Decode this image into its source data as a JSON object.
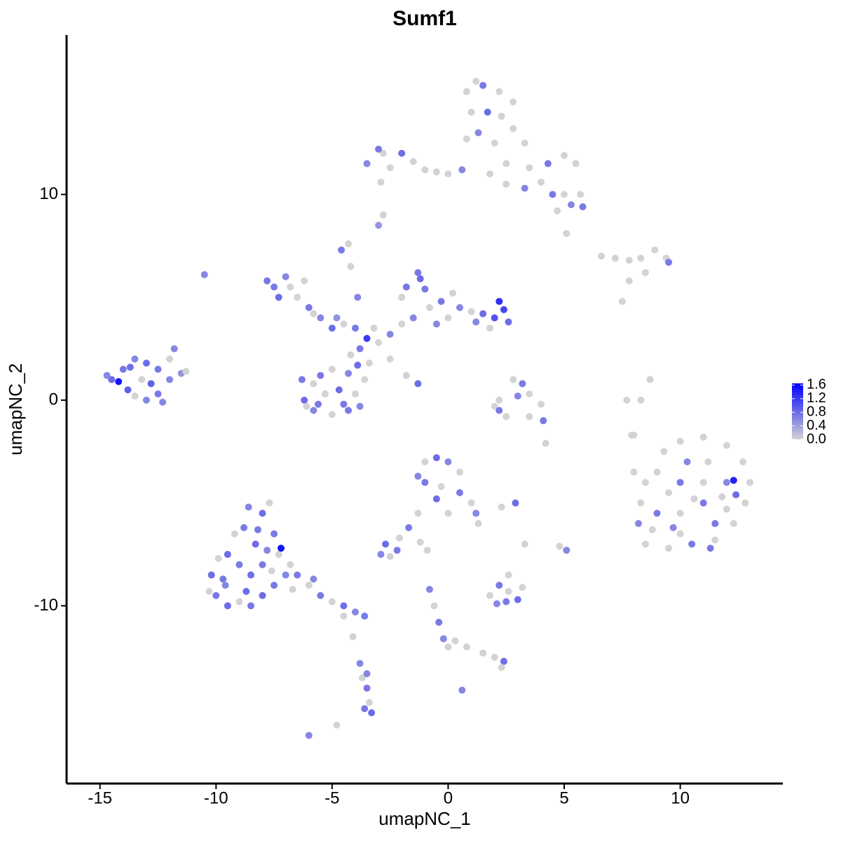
{
  "chart_data": {
    "type": "scatter",
    "title": "Sumf1",
    "x_label": "umapNC_1",
    "y_label": "umapNC_2",
    "xlim": [
      -16.44,
      14.42
    ],
    "ylim": [
      -18.64,
      17.75
    ],
    "xticks": [
      -15,
      -10,
      -5,
      0,
      5,
      10
    ],
    "yticks": [
      -10,
      0,
      10
    ],
    "grid": false,
    "color_scale": {
      "colors": [
        "#d3d3d3",
        "#0000ff"
      ],
      "lim": [
        0,
        1.65
      ],
      "ticks": [
        {
          "value": 0,
          "label": "0.0"
        },
        0.4,
        0.8,
        1.2,
        1.6
      ]
    },
    "x": [
      -14.5,
      -14,
      -13.5,
      -13,
      -12.5,
      -12,
      -11.5,
      -11.8,
      -12.5,
      -13,
      -13.8,
      -14.2,
      -13.2,
      -12.8,
      -12.3,
      -14.7,
      -11.3,
      -13.5,
      -12,
      -13.7,
      -7.5,
      -7,
      -7.3,
      -6.5,
      -6,
      -5.5,
      -5,
      -4.5,
      -4,
      -6.8,
      -5.8,
      -4.8,
      -7.8,
      -6.2,
      -10.5,
      -4.6,
      -4.3,
      -4.2,
      -3.9,
      -3.5,
      -3,
      -3.8,
      -3.2,
      -2.5,
      -2,
      -3.4,
      -4.2,
      -1.2,
      -1,
      -0.8,
      -0.3,
      0,
      0.5,
      1,
      1.5,
      2,
      2.4,
      2.6,
      1.8,
      -1.5,
      -2,
      -1.8,
      1.2,
      2.2,
      0.2,
      -0.5,
      -1.3,
      -2.5,
      -1.8,
      -1.3,
      -6.3,
      -6.2,
      -5.8,
      -5,
      -4.3,
      -4,
      -4.3,
      -5,
      -5.5,
      -5.3,
      -4.7,
      -5.8,
      -3.8,
      -3.6,
      -5.6,
      -6.1,
      -4.5,
      -3.9,
      0.8,
      1.5,
      2.2,
      2.8,
      1,
      1.7,
      2.3,
      1.3,
      2,
      2.8,
      1.2,
      0.8,
      -3.5,
      -2.8,
      -2.5,
      -2,
      -1.5,
      -1,
      -0.5,
      0,
      0.6,
      -2.9,
      -3,
      1.8,
      2.5,
      3.5,
      4.3,
      5,
      5.5,
      3.3,
      4,
      4.5,
      5,
      5.7,
      5.3,
      4.7,
      5.8,
      2.5,
      3.3,
      5.1,
      -2.8,
      -3,
      6.6,
      7.2,
      7.8,
      8.3,
      8.9,
      9.4,
      9.5,
      8.5,
      7.8,
      7.5,
      8.7,
      8.3,
      7.7,
      8,
      2.8,
      3.2,
      3,
      3.5,
      4,
      3.5,
      2.5,
      2,
      2.2,
      4.1,
      2.2,
      4.2,
      -1,
      -0.5,
      0,
      0.5,
      -1,
      -0.3,
      0.5,
      1,
      1.2,
      -0.5,
      0,
      1.3,
      -1.3,
      2.9,
      2.3,
      -1.3,
      -1.7,
      -2.1,
      -2.7,
      -2.2,
      -2.5,
      -2.9,
      -1.2,
      -0.9,
      1.8,
      2.2,
      2.6,
      3,
      2.5,
      2.1,
      3.2,
      2.6,
      3.3,
      5.1,
      4.8,
      -0.8,
      -0.6,
      -0.4,
      -0.2,
      0,
      0.3,
      0.8,
      1.5,
      2,
      2.4,
      2.3,
      0.6,
      -10.2,
      -10,
      -9.5,
      -9,
      -8.5,
      -8,
      -7.5,
      -7,
      -7.3,
      -7.5,
      -8,
      -8.6,
      -9.2,
      -9.5,
      -9,
      -8.5,
      -8,
      -8.3,
      -8.8,
      -7.8,
      -7.2,
      -9.7,
      -8.7,
      -7.6,
      -10.3,
      -9.9,
      -7.7,
      -6.8,
      -9.6,
      -8.2,
      -6.5,
      -6,
      -5.5,
      -5,
      -4.5,
      -4,
      -3.6,
      -4.5,
      -5.8,
      -6.7,
      -4.1,
      -3.8,
      -3.7,
      -3.5,
      -3.4,
      -3.6,
      -3.3,
      -6,
      -4.8,
      -3.5,
      8.5,
      8.3,
      8.2,
      8.5,
      9.5,
      10.5,
      11.5,
      12.3,
      12.8,
      13,
      12.7,
      12,
      11,
      10,
      9.3,
      9,
      10,
      11,
      12,
      11,
      10,
      9,
      10,
      11.5,
      12,
      11.2,
      10.3,
      9.5,
      12.3,
      8.8,
      10.6,
      11.8,
      9.7,
      11.3,
      12.4,
      8,
      7.9
    ],
    "values": [
      1,
      1.5,
      2,
      1.8,
      1.5,
      1,
      1.3,
      2.5,
      0.3,
      0,
      0.5,
      0.9,
      1,
      0.8,
      -0.1,
      1.2,
      1.4,
      0.2,
      2,
      1.6,
      5.5,
      6,
      5,
      5,
      4.5,
      4,
      3.5,
      3.7,
      3.5,
      5.5,
      4.2,
      4,
      5.8,
      5.8,
      6.1,
      7.3,
      7.6,
      6.5,
      5,
      3,
      2.8,
      2.5,
      3.5,
      3.2,
      3.7,
      1.8,
      2.2,
      5.9,
      5.4,
      4.5,
      4.8,
      4,
      4.5,
      4.3,
      4.2,
      4,
      4.4,
      3.8,
      3.5,
      4,
      5,
      5.5,
      3.8,
      4.8,
      5.2,
      3.7,
      6.2,
      2,
      1.2,
      0.8,
      1,
      0,
      -0.5,
      -0.7,
      -0.5,
      0.3,
      1.3,
      1.5,
      1.2,
      0.3,
      0.5,
      0.8,
      -0.3,
      1,
      -0.2,
      -0.3,
      -0.2,
      1.7,
      15,
      15.3,
      15,
      14.5,
      14,
      14,
      13.8,
      13,
      12.5,
      13.2,
      15.5,
      12.7,
      11.5,
      12,
      11.3,
      12,
      11.6,
      11.2,
      11.1,
      11,
      11.2,
      10.6,
      12.2,
      11,
      11.5,
      11.3,
      11.5,
      11.9,
      11.5,
      12.5,
      10.6,
      10,
      10,
      10,
      9.5,
      9.2,
      9.4,
      10.5,
      10.3,
      8.1,
      9,
      8.5,
      7,
      6.9,
      6.8,
      6.9,
      7.3,
      6.9,
      6.7,
      6.2,
      5.8,
      4.8,
      1,
      0,
      0,
      -1.7,
      1,
      0.8,
      0.2,
      0.3,
      -0.2,
      -0.8,
      -0.8,
      -0.3,
      -0.5,
      -1,
      0,
      -2.1,
      -3,
      -2.8,
      -3,
      -3.5,
      -4,
      -4.2,
      -4.5,
      -5,
      -5.5,
      -4.8,
      -5.5,
      -6,
      -3.7,
      -5,
      -5.2,
      -5.5,
      -6.2,
      -6.7,
      -7,
      -7.3,
      -7.6,
      -7.5,
      -6.9,
      -7.3,
      -9.5,
      -9,
      -9.3,
      -9.7,
      -9.8,
      -9.9,
      -9.1,
      -8.5,
      -7,
      -7.3,
      -7.1,
      -9.2,
      -10,
      -10.8,
      -11.6,
      -12,
      -11.7,
      -12,
      -12.3,
      -12.5,
      -12.7,
      -13,
      -14.1,
      -8.5,
      -9.5,
      -10,
      -9.8,
      -10,
      -9.5,
      -9,
      -8.5,
      -7.5,
      -6.5,
      -5.5,
      -5.2,
      -6.5,
      -7.5,
      -8,
      -8.5,
      -8,
      -7,
      -6.2,
      -7.3,
      -7.2,
      -8.7,
      -9.3,
      -8.3,
      -9.3,
      -7.7,
      -5,
      -8,
      -9,
      -6.3,
      -8.5,
      -9,
      -9.5,
      -9.8,
      -10,
      -10.3,
      -10.5,
      -10.5,
      -8.7,
      -9.2,
      -11.5,
      -12.8,
      -13.5,
      -14,
      -14.7,
      -15,
      -15.2,
      -16.3,
      -15.8,
      -13.3,
      -4,
      -5,
      -6,
      -7,
      -7.2,
      -7,
      -6.8,
      -6,
      -5,
      -4,
      -3,
      -2.2,
      -1.8,
      -2,
      -2.5,
      -3.5,
      -4,
      -4,
      -4,
      -5,
      -5.5,
      -5.5,
      -6.5,
      -6,
      -5.3,
      -3,
      -3,
      -4.5,
      -3.9,
      -6.3,
      -4.8,
      -4.7,
      -6.2,
      -7.2,
      -4.6,
      -3.5,
      -1.7
    ],
    "color_values": [
      0.8,
      0.7,
      0.6,
      0.8,
      0.7,
      0.6,
      0.5,
      0.6,
      0.7,
      0.6,
      0.9,
      1.5,
      0,
      0.9,
      0.6,
      0.6,
      0,
      0,
      0,
      0.8,
      0.7,
      0.6,
      0.8,
      0,
      0.7,
      0.6,
      0.8,
      0,
      0.7,
      0,
      0,
      0.5,
      0.7,
      0,
      0.6,
      0.7,
      0,
      0,
      0.6,
      1.2,
      0,
      0.7,
      0,
      0.6,
      0,
      0,
      0,
      0.8,
      0.7,
      0,
      0.7,
      0,
      0.6,
      0,
      0.8,
      1,
      1.1,
      0.8,
      0,
      0.6,
      0,
      0.7,
      0.6,
      1.3,
      0,
      0.6,
      0.7,
      0,
      0,
      0.8,
      0.7,
      0.8,
      0.6,
      0,
      0.7,
      0,
      0.6,
      0,
      0.7,
      0,
      0.8,
      0,
      0.6,
      0,
      0.7,
      0,
      0.7,
      0.8,
      0,
      0.7,
      0,
      0,
      0,
      0.8,
      0,
      0.6,
      0,
      0,
      0,
      0,
      0.6,
      0,
      0,
      0.8,
      0,
      0,
      0,
      0,
      0.6,
      0,
      0.7,
      0,
      0,
      0,
      0.7,
      0,
      0,
      0,
      0,
      0.7,
      0,
      0,
      0.6,
      0,
      0.7,
      0,
      0.6,
      0,
      0,
      0.5,
      0,
      0,
      0,
      0,
      0,
      0,
      0.7,
      0,
      0,
      0,
      0,
      0,
      0,
      0,
      0,
      0.7,
      0.6,
      0,
      0,
      0,
      0,
      0,
      0.7,
      0.7,
      0,
      0,
      0,
      0.8,
      0.6,
      0,
      0.7,
      0,
      0.7,
      0,
      0.6,
      0.8,
      0,
      0,
      0.6,
      0.8,
      0,
      0,
      0.7,
      0,
      0.8,
      0.7,
      0,
      0.6,
      0,
      0,
      0,
      0.7,
      0,
      0.8,
      0.7,
      0.6,
      0,
      0,
      0,
      0.6,
      0,
      0.6,
      0,
      0.7,
      0.6,
      0,
      0,
      0,
      0,
      0,
      0.8,
      0,
      0.6,
      0.8,
      0.7,
      0.8,
      0,
      0.7,
      0.8,
      0.7,
      0.6,
      0,
      0.7,
      0.8,
      0.6,
      0,
      0.8,
      0.7,
      0.8,
      0.7,
      0.8,
      0.7,
      0.6,
      1.5,
      0.7,
      0.8,
      0,
      0,
      0,
      0,
      0,
      0.6,
      0.7,
      0.7,
      0,
      0.7,
      0,
      0.8,
      0.6,
      0.7,
      0,
      0.6,
      0,
      0,
      0.6,
      0,
      0.7,
      0,
      0.7,
      0.8,
      0.6,
      0,
      0.6,
      0,
      0,
      0.6,
      0,
      0,
      0.7,
      0,
      0,
      0,
      0,
      0,
      0,
      0,
      0,
      0,
      0,
      0.7,
      0,
      0.6,
      0.7,
      0,
      0.7,
      0,
      0.7,
      0,
      0,
      0.6,
      0,
      1.4,
      0,
      0,
      0,
      0.6,
      0.7,
      0.8,
      0,
      0
    ]
  }
}
